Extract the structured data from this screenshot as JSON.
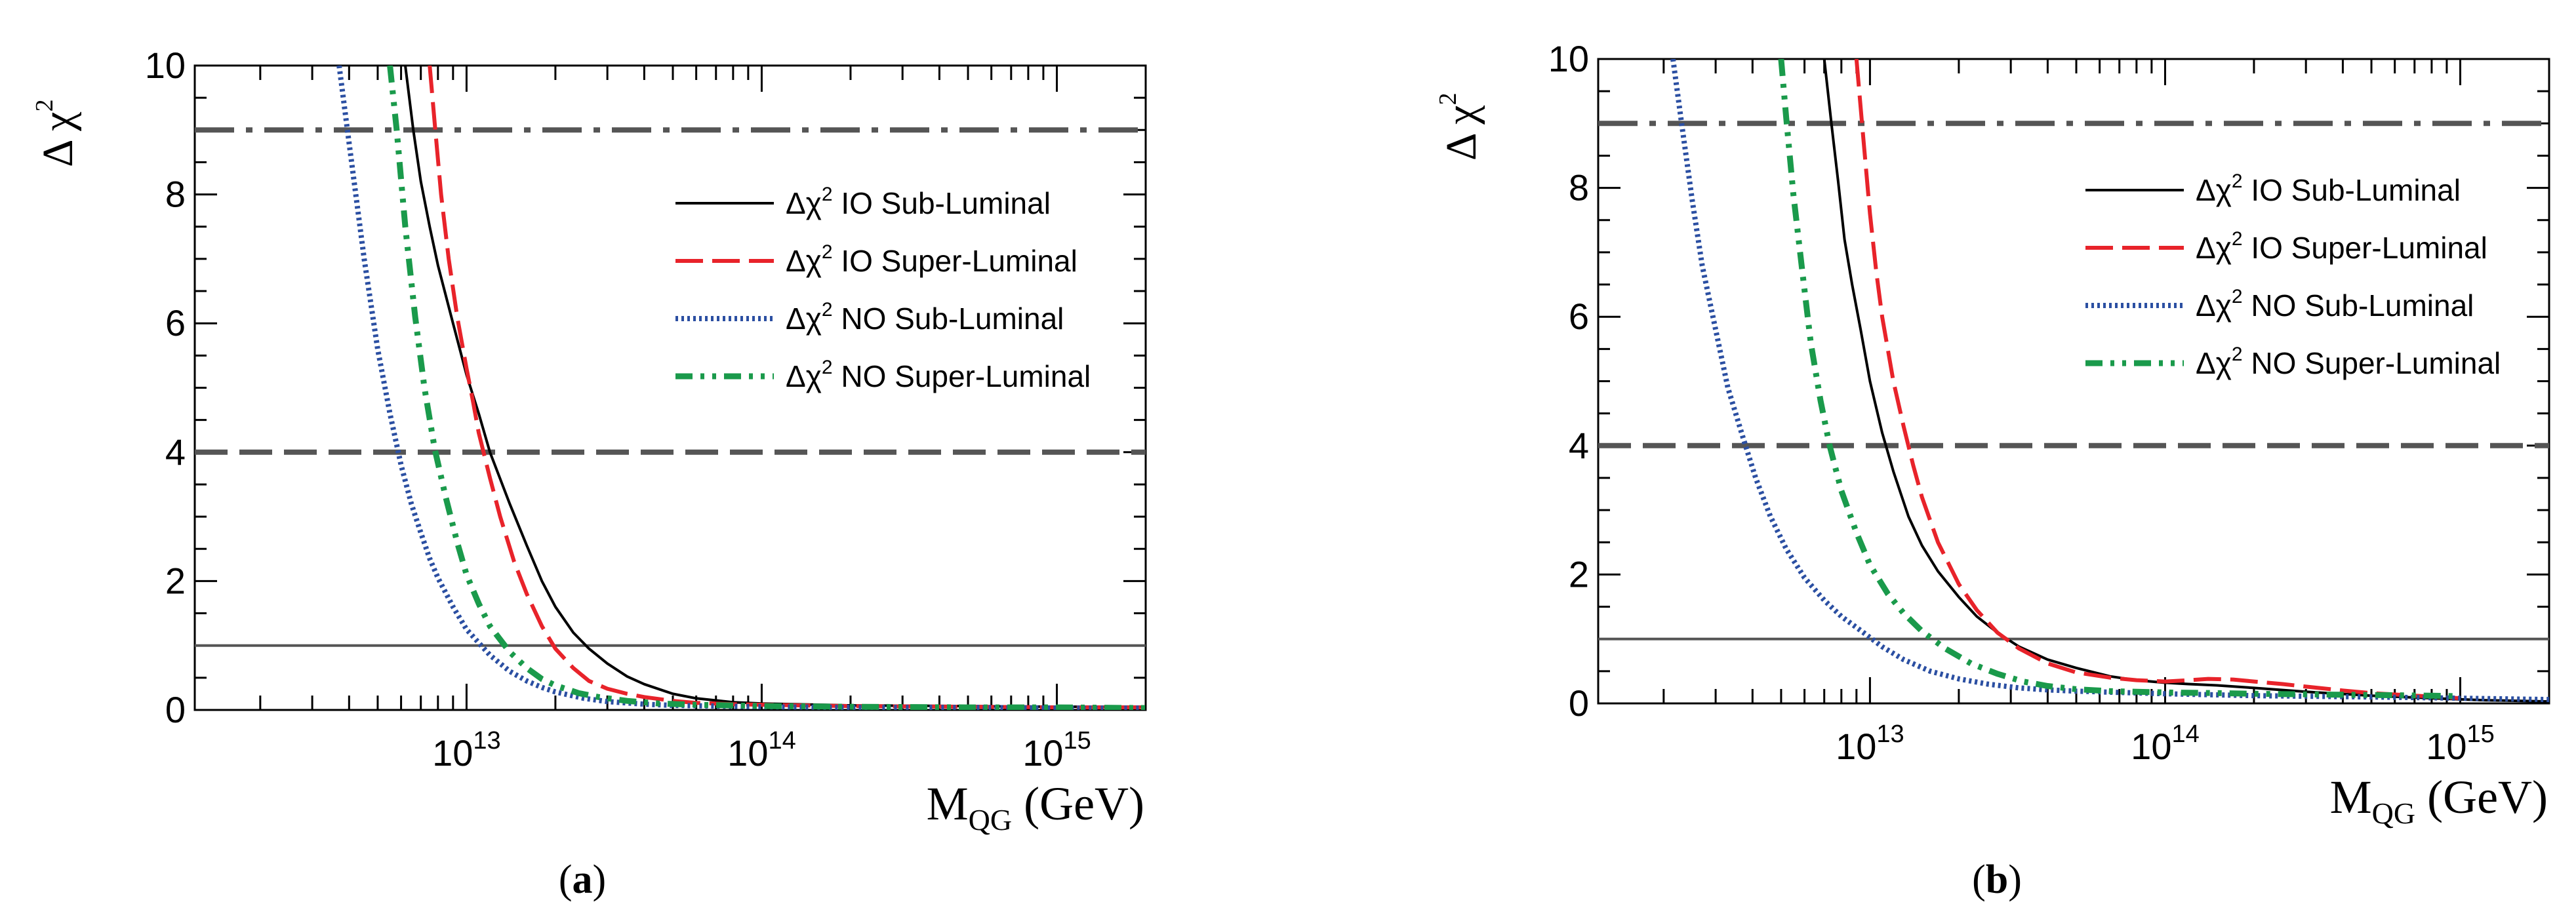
{
  "chart_data": [
    {
      "type": "line",
      "panel": "a",
      "panel_label": "a",
      "ylabel": "Δ χ",
      "ylabel_exp": "2",
      "xlabel_main": "M",
      "xlabel_sub": "QG",
      "xlabel_unit": " (GeV)",
      "xscale": "log",
      "xlim": [
        1200000000000.0,
        2000000000000000.0
      ],
      "ylim": [
        0,
        10
      ],
      "yticks": [
        "0",
        "2",
        "4",
        "6",
        "8",
        "10"
      ],
      "xticks": [
        {
          "base": "10",
          "exp": "13"
        },
        {
          "base": "10",
          "exp": "14"
        },
        {
          "base": "10",
          "exp": "15"
        }
      ],
      "reference_lines": [
        {
          "y": 9,
          "style": "dashdot",
          "color": "#555555"
        },
        {
          "y": 4,
          "style": "dashed",
          "color": "#555555"
        },
        {
          "y": 1,
          "style": "solid",
          "color": "#555555"
        }
      ],
      "legend": {
        "position": "top-right"
      },
      "series": [
        {
          "label_prefix": "Δχ",
          "label_exp": "2",
          "label_rest": " IO Sub-Luminal",
          "style": "solid",
          "color": "#000000",
          "x": [
            6200000000000.0,
            6600000000000.0,
            7000000000000.0,
            7500000000000.0,
            8000000000000.0,
            9000000000000.0,
            10000000000000.0,
            11000000000000.0,
            12000000000000.0,
            14000000000000.0,
            16000000000000.0,
            18000000000000.0,
            20000000000000.0,
            23000000000000.0,
            26000000000000.0,
            30000000000000.0,
            35000000000000.0,
            40000000000000.0,
            50000000000000.0,
            60000000000000.0,
            80000000000000.0,
            100000000000000.0,
            200000000000000.0,
            500000000000000.0,
            1000000000000000.0,
            2000000000000000.0
          ],
          "y": [
            10.0,
            9.0,
            8.2,
            7.5,
            6.9,
            6.0,
            5.2,
            4.6,
            4.0,
            3.2,
            2.55,
            2.0,
            1.6,
            1.2,
            0.95,
            0.72,
            0.52,
            0.4,
            0.25,
            0.18,
            0.12,
            0.1,
            0.07,
            0.06,
            0.05,
            0.05
          ]
        },
        {
          "label_prefix": "Δχ",
          "label_exp": "2",
          "label_rest": " IO Super-Luminal",
          "style": "dashed",
          "color": "#e8232a",
          "x": [
            7500000000000.0,
            7800000000000.0,
            8200000000000.0,
            8700000000000.0,
            9300000000000.0,
            10000000000000.0,
            10500000000000.0,
            11000000000000.0,
            12000000000000.0,
            13000000000000.0,
            14500000000000.0,
            16000000000000.0,
            18000000000000.0,
            20000000000000.0,
            23000000000000.0,
            26000000000000.0,
            30000000000000.0,
            35000000000000.0,
            40000000000000.0,
            50000000000000.0,
            60000000000000.0,
            80000000000000.0,
            100000000000000.0,
            200000000000000.0,
            500000000000000.0,
            1000000000000000.0,
            2000000000000000.0
          ],
          "y": [
            10.0,
            9.1,
            8.0,
            7.0,
            6.1,
            5.3,
            4.8,
            4.3,
            3.6,
            3.0,
            2.3,
            1.8,
            1.3,
            0.95,
            0.65,
            0.45,
            0.33,
            0.25,
            0.2,
            0.14,
            0.11,
            0.09,
            0.08,
            0.06,
            0.05,
            0.04,
            0.04
          ]
        },
        {
          "label_prefix": "Δχ",
          "label_exp": "2",
          "label_rest": " NO Sub-Luminal",
          "style": "dotted",
          "color": "#2b4fa2",
          "x": [
            3700000000000.0,
            4000000000000.0,
            4500000000000.0,
            5000000000000.0,
            5500000000000.0,
            6000000000000.0,
            6500000000000.0,
            7000000000000.0,
            7500000000000.0,
            8000000000000.0,
            9000000000000.0,
            10000000000000.0,
            12000000000000.0,
            14000000000000.0,
            16000000000000.0,
            18000000000000.0,
            20000000000000.0,
            25000000000000.0,
            30000000000000.0,
            40000000000000.0,
            50000000000000.0,
            70000000000000.0,
            100000000000000.0,
            200000000000000.0,
            500000000000000.0,
            1000000000000000.0,
            2000000000000000.0
          ],
          "y": [
            10.0,
            8.8,
            7.0,
            5.6,
            4.6,
            3.8,
            3.2,
            2.75,
            2.35,
            2.05,
            1.6,
            1.25,
            0.85,
            0.6,
            0.45,
            0.35,
            0.28,
            0.18,
            0.13,
            0.09,
            0.07,
            0.06,
            0.05,
            0.04,
            0.04,
            0.03,
            0.03
          ]
        },
        {
          "label_prefix": "Δχ",
          "label_exp": "2",
          "label_rest": " NO Super-Luminal",
          "style": "dashdotdot",
          "color": "#1a9a4b",
          "x": [
            5500000000000.0,
            5800000000000.0,
            6200000000000.0,
            6700000000000.0,
            7200000000000.0,
            7800000000000.0,
            8500000000000.0,
            9300000000000.0,
            10000000000000.0,
            11000000000000.0,
            12000000000000.0,
            14000000000000.0,
            16000000000000.0,
            18000000000000.0,
            20000000000000.0,
            24000000000000.0,
            28000000000000.0,
            35000000000000.0,
            45000000000000.0,
            60000000000000.0,
            80000000000000.0,
            100000000000000.0,
            200000000000000.0,
            500000000000000.0,
            1000000000000000.0,
            2000000000000000.0
          ],
          "y": [
            10.0,
            9.0,
            7.5,
            6.1,
            5.0,
            4.05,
            3.3,
            2.6,
            2.1,
            1.65,
            1.3,
            0.9,
            0.65,
            0.48,
            0.38,
            0.26,
            0.2,
            0.14,
            0.1,
            0.08,
            0.07,
            0.06,
            0.05,
            0.04,
            0.04,
            0.03
          ]
        }
      ]
    },
    {
      "type": "line",
      "panel": "b",
      "panel_label": "b",
      "ylabel": "Δ χ",
      "ylabel_exp": "2",
      "xlabel_main": "M",
      "xlabel_sub": "QG",
      "xlabel_unit": " (GeV)",
      "xscale": "log",
      "xlim": [
        1200000000000.0,
        2000000000000000.0
      ],
      "ylim": [
        0,
        10
      ],
      "yticks": [
        "0",
        "2",
        "4",
        "6",
        "8",
        "10"
      ],
      "xticks": [
        {
          "base": "10",
          "exp": "13"
        },
        {
          "base": "10",
          "exp": "14"
        },
        {
          "base": "10",
          "exp": "15"
        }
      ],
      "reference_lines": [
        {
          "y": 9,
          "style": "dashdot",
          "color": "#555555"
        },
        {
          "y": 4,
          "style": "dashed",
          "color": "#555555"
        },
        {
          "y": 1,
          "style": "solid",
          "color": "#555555"
        }
      ],
      "legend": {
        "position": "top-right"
      },
      "series": [
        {
          "label_prefix": "Δχ",
          "label_exp": "2",
          "label_rest": " IO Sub-Luminal",
          "style": "solid",
          "color": "#000000",
          "x": [
            7000000000000.0,
            7400000000000.0,
            7800000000000.0,
            8200000000000.0,
            8700000000000.0,
            9300000000000.0,
            10000000000000.0,
            11000000000000.0,
            12000000000000.0,
            13500000000000.0,
            15000000000000.0,
            17000000000000.0,
            20000000000000.0,
            23000000000000.0,
            27000000000000.0,
            32000000000000.0,
            40000000000000.0,
            50000000000000.0,
            65000000000000.0,
            80000000000000.0,
            100000000000000.0,
            120000000000000.0,
            150000000000000.0,
            200000000000000.0,
            300000000000000.0,
            500000000000000.0,
            800000000000000.0,
            1200000000000000.0,
            2000000000000000.0
          ],
          "y": [
            10.0,
            9.0,
            8.1,
            7.2,
            6.5,
            5.8,
            5.0,
            4.2,
            3.6,
            2.9,
            2.45,
            2.05,
            1.65,
            1.35,
            1.1,
            0.88,
            0.68,
            0.55,
            0.42,
            0.36,
            0.32,
            0.3,
            0.28,
            0.24,
            0.18,
            0.12,
            0.08,
            0.05,
            0.03
          ]
        },
        {
          "label_prefix": "Δχ",
          "label_exp": "2",
          "label_rest": " IO Super-Luminal",
          "style": "dashed",
          "color": "#e8232a",
          "x": [
            9000000000000.0,
            9400000000000.0,
            10000000000000.0,
            10500000000000.0,
            11000000000000.0,
            12000000000000.0,
            13000000000000.0,
            14000000000000.0,
            15000000000000.0,
            17000000000000.0,
            20000000000000.0,
            23000000000000.0,
            27000000000000.0,
            32000000000000.0,
            40000000000000.0,
            50000000000000.0,
            65000000000000.0,
            80000000000000.0,
            100000000000000.0,
            120000000000000.0,
            140000000000000.0,
            170000000000000.0,
            200000000000000.0,
            250000000000000.0,
            300000000000000.0,
            400000000000000.0,
            500000000000000.0,
            700000000000000.0,
            1000000000000000.0
          ],
          "y": [
            10.0,
            9.0,
            7.6,
            6.7,
            6.0,
            5.0,
            4.3,
            3.7,
            3.2,
            2.5,
            1.85,
            1.45,
            1.1,
            0.85,
            0.62,
            0.48,
            0.4,
            0.36,
            0.34,
            0.36,
            0.38,
            0.37,
            0.34,
            0.3,
            0.26,
            0.2,
            0.16,
            0.12,
            0.08
          ]
        },
        {
          "label_prefix": "Δχ",
          "label_exp": "2",
          "label_rest": " NO Sub-Luminal",
          "style": "dotted",
          "color": "#2b4fa2",
          "x": [
            2150000000000.0,
            2300000000000.0,
            2500000000000.0,
            2700000000000.0,
            3000000000000.0,
            3300000000000.0,
            3700000000000.0,
            4100000000000.0,
            4600000000000.0,
            5200000000000.0,
            6000000000000.0,
            7000000000000.0,
            8000000000000.0,
            9500000000000.0,
            11000000000000.0,
            13000000000000.0,
            16000000000000.0,
            20000000000000.0,
            25000000000000.0,
            32000000000000.0,
            40000000000000.0,
            50000000000000.0,
            70000000000000.0,
            100000000000000.0,
            200000000000000.0,
            500000000000000.0,
            1000000000000000.0,
            2000000000000000.0
          ],
          "y": [
            10.0,
            9.0,
            7.8,
            6.8,
            5.8,
            4.9,
            4.15,
            3.5,
            2.9,
            2.4,
            1.95,
            1.6,
            1.35,
            1.1,
            0.88,
            0.68,
            0.5,
            0.38,
            0.3,
            0.24,
            0.21,
            0.19,
            0.17,
            0.15,
            0.12,
            0.1,
            0.08,
            0.06
          ]
        },
        {
          "label_prefix": "Δχ",
          "label_exp": "2",
          "label_rest": " NO Super-Luminal",
          "style": "dashdotdot",
          "color": "#1a9a4b",
          "x": [
            5000000000000.0,
            5200000000000.0,
            5500000000000.0,
            5900000000000.0,
            6300000000000.0,
            6800000000000.0,
            7300000000000.0,
            8000000000000.0,
            9000000000000.0,
            10000000000000.0,
            11500000000000.0,
            13000000000000.0,
            15000000000000.0,
            18000000000000.0,
            22000000000000.0,
            27000000000000.0,
            33000000000000.0,
            40000000000000.0,
            50000000000000.0,
            65000000000000.0,
            80000000000000.0,
            100000000000000.0,
            150000000000000.0,
            200000000000000.0,
            300000000000000.0,
            500000000000000.0,
            800000000000000.0,
            1000000000000000.0
          ],
          "y": [
            10.0,
            9.1,
            7.9,
            6.7,
            5.6,
            4.7,
            4.0,
            3.3,
            2.65,
            2.15,
            1.7,
            1.4,
            1.12,
            0.85,
            0.62,
            0.46,
            0.34,
            0.27,
            0.22,
            0.19,
            0.18,
            0.17,
            0.16,
            0.15,
            0.14,
            0.13,
            0.12,
            0.11
          ]
        }
      ]
    }
  ]
}
